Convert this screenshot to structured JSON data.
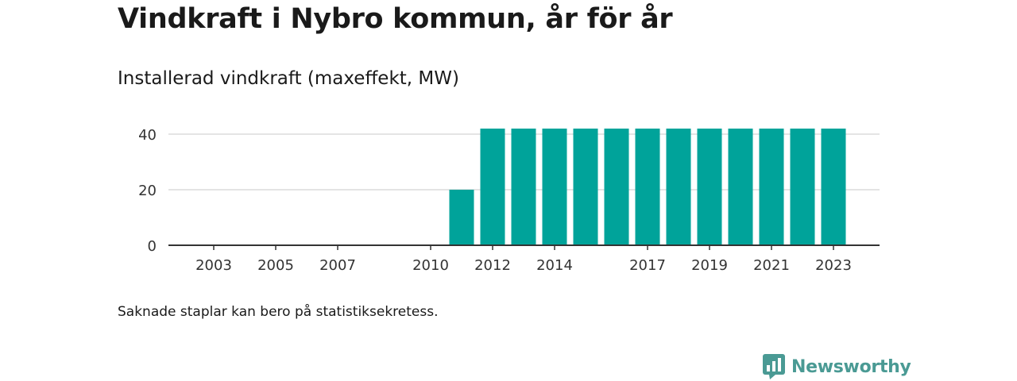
{
  "title": "Vindkraft i Nybro kommun, år för år",
  "subtitle": "Installerad vindkraft (maxeffekt, MW)",
  "footnote": "Saknade staplar kan bero på statistiksekretess.",
  "brand": {
    "name": "Newsworthy",
    "logo_icon": "bar-chart-speech-bubble-icon",
    "color": "#4a9a94"
  },
  "chart_data": {
    "type": "bar",
    "title": "",
    "xlabel": "",
    "ylabel": "Installerad vindkraft (maxeffekt, MW)",
    "categories": [
      "2002",
      "2003",
      "2004",
      "2005",
      "2006",
      "2007",
      "2008",
      "2009",
      "2010",
      "2011",
      "2012",
      "2013",
      "2014",
      "2015",
      "2016",
      "2017",
      "2018",
      "2019",
      "2020",
      "2021",
      "2022",
      "2023"
    ],
    "values": [
      0,
      0,
      0,
      0,
      0,
      0,
      0,
      0,
      0,
      20,
      42,
      42,
      42,
      42,
      42,
      42,
      42,
      42,
      42,
      42,
      42,
      42
    ],
    "x_tick_labels": [
      "2003",
      "2005",
      "2007",
      "2010",
      "2012",
      "2014",
      "2017",
      "2019",
      "2021",
      "2023"
    ],
    "y_ticks": [
      0,
      20,
      40
    ],
    "ylim": [
      0,
      42
    ],
    "grid": true,
    "bar_color": "#00a39a"
  }
}
